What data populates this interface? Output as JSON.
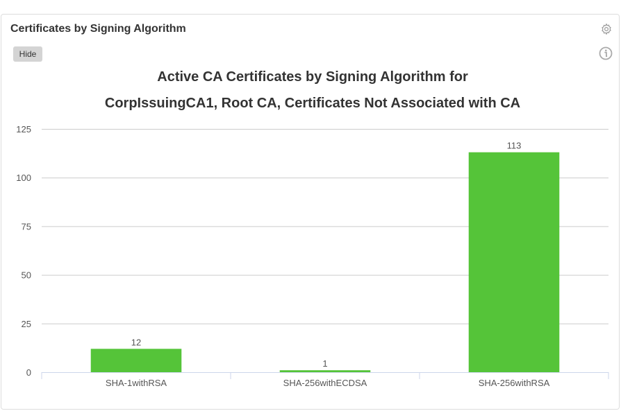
{
  "panel": {
    "title": "Certificates by Signing Algorithm",
    "hide_label": "Hide",
    "icons": [
      "gear-icon",
      "info-icon"
    ]
  },
  "chart_data": {
    "type": "bar",
    "title_line1": "Active CA Certificates by Signing Algorithm for",
    "title_line2": "CorpIssuingCA1, Root CA, Certificates Not Associated with CA",
    "categories": [
      "SHA-1withRSA",
      "SHA-256withECDSA",
      "SHA-256withRSA"
    ],
    "values": [
      12,
      1,
      113
    ],
    "ylim": [
      0,
      125
    ],
    "yticks": [
      0,
      25,
      50,
      75,
      100,
      125
    ],
    "grid": true,
    "bar_color": "#55c439",
    "xlabel": "",
    "ylabel": ""
  }
}
